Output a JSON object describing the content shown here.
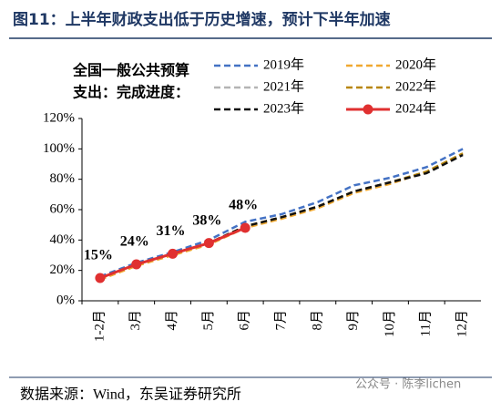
{
  "chart_data": {
    "type": "line",
    "title": "图11：上半年财政支出低于历史增速，预计下半年加速",
    "legend_title": [
      "全国一般公共预算",
      "支出：完成进度："
    ],
    "categories": [
      "1-2月",
      "3月",
      "4月",
      "5月",
      "6月",
      "7月",
      "8月",
      "9月",
      "10月",
      "11月",
      "12月"
    ],
    "series": [
      {
        "name": "2019年",
        "color": "#4472c4",
        "dashed": true,
        "values": [
          16,
          25,
          32,
          40,
          52,
          57,
          65,
          76,
          81,
          88,
          100
        ]
      },
      {
        "name": "2020年",
        "color": "#f0a830",
        "dashed": true,
        "values": [
          14,
          23,
          30,
          37,
          48,
          54,
          61,
          71,
          77,
          85,
          97
        ]
      },
      {
        "name": "2021年",
        "color": "#b4b4b4",
        "dashed": true,
        "values": [
          15,
          24,
          31,
          38,
          49,
          55,
          62,
          72,
          78,
          85,
          97
        ]
      },
      {
        "name": "2022年",
        "color": "#b8860b",
        "dashed": true,
        "values": [
          15,
          24,
          31,
          38,
          49,
          55,
          62,
          72,
          78,
          85,
          97
        ]
      },
      {
        "name": "2023年",
        "color": "#111111",
        "dashed": true,
        "values": [
          15,
          24,
          31,
          38,
          49,
          55,
          62,
          72,
          78,
          84,
          96
        ]
      },
      {
        "name": "2024年",
        "color": "#e03030",
        "dashed": false,
        "markers": true,
        "values": [
          15,
          24,
          31,
          38,
          48,
          null,
          null,
          null,
          null,
          null,
          null
        ],
        "value_labels": [
          "15%",
          "24%",
          "31%",
          "38%",
          "48%",
          null,
          null,
          null,
          null,
          null,
          null
        ]
      }
    ],
    "ylim": [
      0,
      120
    ],
    "yticks": [
      {
        "value": 0,
        "label": "0%"
      },
      {
        "value": 20,
        "label": "20%"
      },
      {
        "value": 40,
        "label": "40%"
      },
      {
        "value": 60,
        "label": "60%"
      },
      {
        "value": 80,
        "label": "80%"
      },
      {
        "value": 100,
        "label": "100%"
      },
      {
        "value": 120,
        "label": "120%"
      }
    ],
    "source": "数据来源：Wind，东吴证券研究所",
    "watermark": "公众号 · 陈李lichen"
  }
}
